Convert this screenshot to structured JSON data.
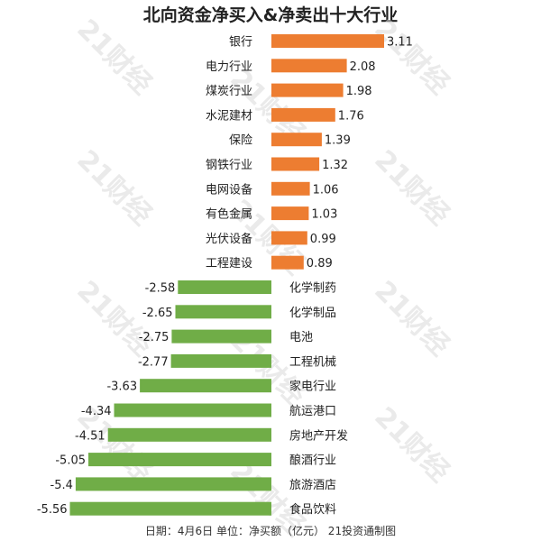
{
  "chart_data": {
    "type": "bar",
    "orientation": "horizontal",
    "title": "北向资金净买入&净卖出十大行业",
    "categories": [
      "银行",
      "电力行业",
      "煤炭行业",
      "水泥建材",
      "保险",
      "钢铁行业",
      "电网设备",
      "有色金属",
      "光伏设备",
      "工程建设",
      "化学制药",
      "化学制品",
      "电池",
      "工程机械",
      "家电行业",
      "航运港口",
      "房地产开发",
      "酿酒行业",
      "旅游酒店",
      "食品饮料"
    ],
    "values": [
      3.11,
      2.08,
      1.98,
      1.76,
      1.39,
      1.32,
      1.06,
      1.03,
      0.99,
      0.89,
      -2.58,
      -2.65,
      -2.75,
      -2.77,
      -3.63,
      -4.34,
      -4.51,
      -5.05,
      -5.4,
      -5.56
    ],
    "value_labels": [
      "3.11",
      "2.08",
      "1.98",
      "1.76",
      "1.39",
      "1.32",
      "1.06",
      "1.03",
      "0.99",
      "0.89",
      "-2.58",
      "-2.65",
      "-2.75",
      "-2.77",
      "-3.63",
      "-4.34",
      "-4.51",
      "-5.05",
      "-5.4",
      "-5.56"
    ],
    "colors": {
      "positive": "#ed7d31",
      "negative": "#70ad47"
    },
    "footnote": "日期：4月6日 单位：净买额（亿元） 21投资通制图"
  },
  "watermark": "21财经"
}
